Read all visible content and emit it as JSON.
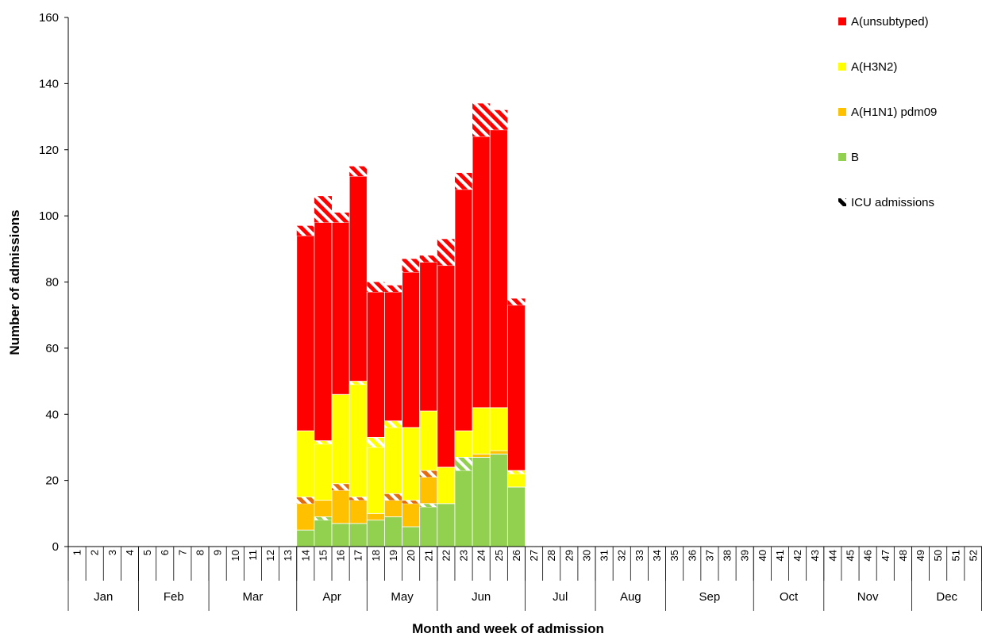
{
  "chart_data": {
    "type": "bar",
    "stacked": true,
    "title": "",
    "xlabel": "Month and week of admission",
    "ylabel": "Number of admissions",
    "ylim": [
      0,
      160
    ],
    "yticks": [
      0,
      20,
      40,
      60,
      80,
      100,
      120,
      140,
      160
    ],
    "weeks": [
      "1",
      "2",
      "3",
      "4",
      "5",
      "6",
      "7",
      "8",
      "9",
      "10",
      "11",
      "12",
      "13",
      "14",
      "15",
      "16",
      "17",
      "18",
      "19",
      "20",
      "21",
      "22",
      "23",
      "24",
      "25",
      "26",
      "27",
      "28",
      "29",
      "30",
      "31",
      "32",
      "33",
      "34",
      "35",
      "36",
      "37",
      "38",
      "39",
      "40",
      "41",
      "42",
      "43",
      "44",
      "45",
      "46",
      "47",
      "48",
      "49",
      "50",
      "51",
      "52"
    ],
    "months": [
      {
        "label": "Jan",
        "start_week": 1,
        "end_week": 4
      },
      {
        "label": "Feb",
        "start_week": 5,
        "end_week": 8
      },
      {
        "label": "Mar",
        "start_week": 9,
        "end_week": 13
      },
      {
        "label": "Apr",
        "start_week": 14,
        "end_week": 17
      },
      {
        "label": "May",
        "start_week": 18,
        "end_week": 21
      },
      {
        "label": "Jun",
        "start_week": 22,
        "end_week": 26
      },
      {
        "label": "Jul",
        "start_week": 27,
        "end_week": 30
      },
      {
        "label": "Aug",
        "start_week": 31,
        "end_week": 34
      },
      {
        "label": "Sep",
        "start_week": 35,
        "end_week": 39
      },
      {
        "label": "Oct",
        "start_week": 40,
        "end_week": 43
      },
      {
        "label": "Nov",
        "start_week": 44,
        "end_week": 48
      },
      {
        "label": "Dec",
        "start_week": 49,
        "end_week": 52
      }
    ],
    "series": [
      {
        "name": "B",
        "color": "#92d050",
        "icu_color": "#92d050",
        "values": [
          0,
          0,
          0,
          0,
          0,
          0,
          0,
          0,
          0,
          0,
          0,
          0,
          0,
          5,
          8,
          7,
          7,
          8,
          9,
          6,
          12,
          13,
          23,
          27,
          28,
          18,
          0,
          0,
          0,
          0,
          0,
          0,
          0,
          0,
          0,
          0,
          0,
          0,
          0,
          0,
          0,
          0,
          0,
          0,
          0,
          0,
          0,
          0,
          0,
          0,
          0,
          0
        ],
        "icu": [
          0,
          0,
          0,
          0,
          0,
          0,
          0,
          0,
          0,
          0,
          0,
          0,
          0,
          0,
          1,
          0,
          0,
          0,
          0,
          0,
          1,
          0,
          4,
          0,
          0,
          0,
          0,
          0,
          0,
          0,
          0,
          0,
          0,
          0,
          0,
          0,
          0,
          0,
          0,
          0,
          0,
          0,
          0,
          0,
          0,
          0,
          0,
          0,
          0,
          0,
          0,
          0
        ]
      },
      {
        "name": "A(H1N1) pdm09",
        "color": "#ffc000",
        "icu_color": "#e46c0a",
        "values": [
          0,
          0,
          0,
          0,
          0,
          0,
          0,
          0,
          0,
          0,
          0,
          0,
          0,
          8,
          5,
          10,
          7,
          2,
          5,
          7,
          8,
          0,
          0,
          1,
          1,
          0,
          0,
          0,
          0,
          0,
          0,
          0,
          0,
          0,
          0,
          0,
          0,
          0,
          0,
          0,
          0,
          0,
          0,
          0,
          0,
          0,
          0,
          0,
          0,
          0,
          0,
          0
        ],
        "icu": [
          0,
          0,
          0,
          0,
          0,
          0,
          0,
          0,
          0,
          0,
          0,
          0,
          0,
          2,
          0,
          2,
          1,
          0,
          2,
          1,
          2,
          0,
          0,
          0,
          0,
          0,
          0,
          0,
          0,
          0,
          0,
          0,
          0,
          0,
          0,
          0,
          0,
          0,
          0,
          0,
          0,
          0,
          0,
          0,
          0,
          0,
          0,
          0,
          0,
          0,
          0,
          0
        ]
      },
      {
        "name": "A(H3N2)",
        "color": "#ffff00",
        "icu_color": "#ffff00",
        "values": [
          0,
          0,
          0,
          0,
          0,
          0,
          0,
          0,
          0,
          0,
          0,
          0,
          0,
          20,
          17,
          27,
          34,
          20,
          20,
          22,
          18,
          11,
          8,
          14,
          13,
          4,
          0,
          0,
          0,
          0,
          0,
          0,
          0,
          0,
          0,
          0,
          0,
          0,
          0,
          0,
          0,
          0,
          0,
          0,
          0,
          0,
          0,
          0,
          0,
          0,
          0,
          0
        ],
        "icu": [
          0,
          0,
          0,
          0,
          0,
          0,
          0,
          0,
          0,
          0,
          0,
          0,
          0,
          0,
          1,
          0,
          1,
          3,
          2,
          0,
          0,
          0,
          0,
          0,
          0,
          1,
          0,
          0,
          0,
          0,
          0,
          0,
          0,
          0,
          0,
          0,
          0,
          0,
          0,
          0,
          0,
          0,
          0,
          0,
          0,
          0,
          0,
          0,
          0,
          0,
          0,
          0
        ]
      },
      {
        "name": "A(unsubtyped)",
        "color": "#ff0000",
        "icu_color": "#ff0000",
        "values": [
          0,
          0,
          0,
          0,
          0,
          0,
          0,
          0,
          0,
          0,
          0,
          0,
          0,
          59,
          66,
          52,
          62,
          44,
          39,
          47,
          45,
          61,
          73,
          82,
          84,
          50,
          0,
          0,
          0,
          0,
          0,
          0,
          0,
          0,
          0,
          0,
          0,
          0,
          0,
          0,
          0,
          0,
          0,
          0,
          0,
          0,
          0,
          0,
          0,
          0,
          0,
          0
        ],
        "icu": [
          0,
          0,
          0,
          0,
          0,
          0,
          0,
          0,
          0,
          0,
          0,
          0,
          0,
          3,
          8,
          3,
          3,
          3,
          2,
          4,
          2,
          8,
          5,
          10,
          6,
          2,
          0,
          0,
          0,
          0,
          0,
          0,
          0,
          0,
          0,
          0,
          0,
          0,
          0,
          0,
          0,
          0,
          0,
          0,
          0,
          0,
          0,
          0,
          0,
          0,
          0,
          0
        ]
      }
    ],
    "legend": {
      "placement": "top-right",
      "entries": [
        {
          "label": "A(unsubtyped)",
          "color": "#ff0000",
          "type": "solid"
        },
        {
          "label": "A(H3N2)",
          "color": "#ffff00",
          "type": "solid"
        },
        {
          "label": "A(H1N1) pdm09",
          "color": "#ffc000",
          "type": "solid"
        },
        {
          "label": "B",
          "color": "#92d050",
          "type": "solid"
        },
        {
          "label": "ICU admissions",
          "color": "#000000",
          "type": "hatched"
        }
      ]
    },
    "grid": false
  }
}
